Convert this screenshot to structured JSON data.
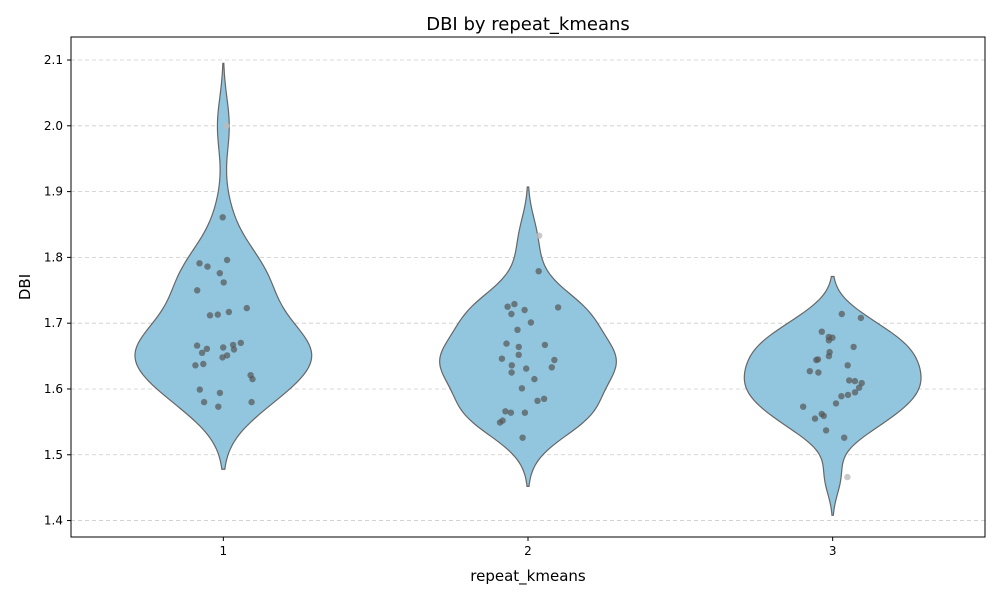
{
  "chart_data": {
    "type": "violin",
    "title": "DBI by repeat_kmeans",
    "xlabel": "repeat_kmeans",
    "ylabel": "DBI",
    "categories": [
      "1",
      "2",
      "3"
    ],
    "ylim": [
      1.375,
      2.135
    ],
    "yticks": [
      1.4,
      1.5,
      1.6,
      1.7,
      1.8,
      1.9,
      2.0,
      2.1
    ],
    "ytick_labels": [
      "1.4",
      "1.5",
      "1.6",
      "1.7",
      "1.8",
      "1.9",
      "2.0",
      "2.1"
    ],
    "grid": "y-dashed",
    "violin_color": "#92c5de",
    "point_color": "#555555",
    "outlier_color": "#bbbbbb",
    "series": [
      {
        "category": "1",
        "range": [
          1.478,
          2.095
        ],
        "outliers": [
          2.0
        ],
        "points": [
          1.861,
          1.796,
          1.791,
          1.786,
          1.776,
          1.762,
          1.75,
          1.723,
          1.717,
          1.713,
          1.712,
          1.67,
          1.667,
          1.666,
          1.663,
          1.661,
          1.66,
          1.655,
          1.651,
          1.648,
          1.638,
          1.636,
          1.621,
          1.615,
          1.599,
          1.594,
          1.58,
          1.58,
          1.573
        ]
      },
      {
        "category": "2",
        "range": [
          1.452,
          1.907
        ],
        "outliers": [
          1.833
        ],
        "points": [
          1.779,
          1.729,
          1.725,
          1.724,
          1.72,
          1.714,
          1.701,
          1.69,
          1.669,
          1.667,
          1.664,
          1.652,
          1.646,
          1.644,
          1.636,
          1.633,
          1.631,
          1.625,
          1.615,
          1.601,
          1.585,
          1.582,
          1.566,
          1.564,
          1.564,
          1.552,
          1.549,
          1.526
        ]
      },
      {
        "category": "3",
        "range": [
          1.408,
          1.771
        ],
        "outliers": [
          1.466
        ],
        "points": [
          1.714,
          1.708,
          1.687,
          1.679,
          1.678,
          1.674,
          1.664,
          1.656,
          1.65,
          1.645,
          1.644,
          1.636,
          1.627,
          1.625,
          1.613,
          1.612,
          1.609,
          1.602,
          1.595,
          1.591,
          1.589,
          1.578,
          1.573,
          1.562,
          1.559,
          1.555,
          1.537,
          1.526
        ]
      }
    ]
  }
}
